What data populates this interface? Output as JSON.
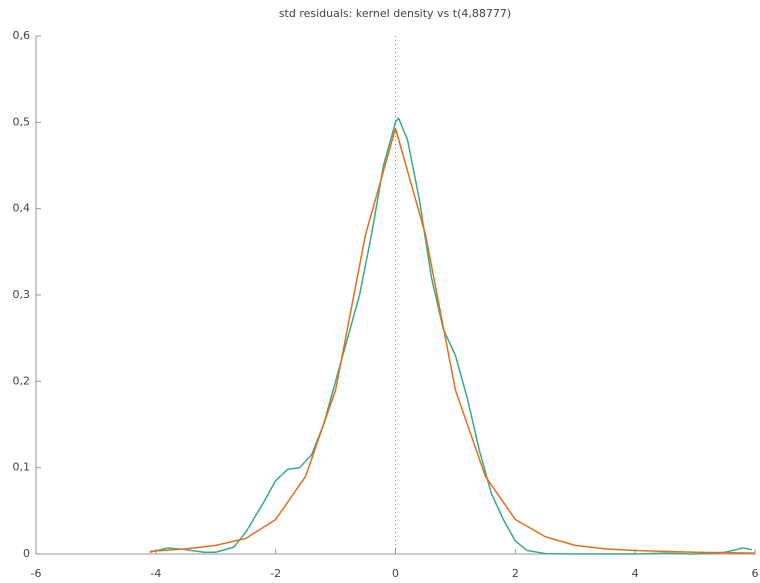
{
  "chart_data": {
    "type": "line",
    "title": "std residuals: kernel density vs t(4,88777)",
    "xlim": [
      -6,
      6
    ],
    "xticks": [
      -6,
      -4,
      -2,
      0,
      2,
      4,
      6
    ],
    "ylim": [
      0,
      0.6
    ],
    "yticks": [
      {
        "value": 0,
        "label": "0"
      },
      {
        "value": 0.1,
        "label": "0,1"
      },
      {
        "value": 0.2,
        "label": "0,2"
      },
      {
        "value": 0.3,
        "label": "0,3"
      },
      {
        "value": 0.4,
        "label": "0,4"
      },
      {
        "value": 0.5,
        "label": "0,5"
      },
      {
        "value": 0.6,
        "label": "0,6"
      }
    ],
    "zero_line": true,
    "series": [
      {
        "color": "#3aa98a",
        "x": [
          -4.1,
          -3.8,
          -3.5,
          -3.2,
          -3.0,
          -2.7,
          -2.5,
          -2.2,
          -2.0,
          -1.8,
          -1.6,
          -1.4,
          -1.2,
          -1.0,
          -0.8,
          -0.6,
          -0.4,
          -0.2,
          0,
          0.05,
          0.2,
          0.4,
          0.6,
          0.8,
          1.0,
          1.2,
          1.4,
          1.6,
          1.8,
          2.0,
          2.2,
          2.5,
          3.0,
          4.0,
          4.5,
          5.0,
          5.5,
          5.8,
          5.95
        ],
        "values": [
          0.002,
          0.007,
          0.005,
          0.002,
          0.002,
          0.008,
          0.025,
          0.06,
          0.085,
          0.098,
          0.1,
          0.115,
          0.15,
          0.2,
          0.25,
          0.3,
          0.37,
          0.45,
          0.5,
          0.505,
          0.48,
          0.41,
          0.32,
          0.26,
          0.23,
          0.18,
          0.12,
          0.07,
          0.04,
          0.015,
          0.004,
          0.0005,
          0,
          0,
          0.001,
          0,
          0.002,
          0.007,
          0.005
        ]
      },
      {
        "color": "#e0701e",
        "x": [
          -4.1,
          -3.5,
          -3.0,
          -2.5,
          -2.0,
          -1.5,
          -1.0,
          -0.5,
          0,
          0.5,
          1.0,
          1.5,
          2.0,
          2.5,
          3.0,
          3.5,
          4.0,
          5.0,
          6.0
        ],
        "values": [
          0.003,
          0.006,
          0.01,
          0.018,
          0.04,
          0.09,
          0.19,
          0.37,
          0.493,
          0.37,
          0.19,
          0.09,
          0.04,
          0.02,
          0.01,
          0.006,
          0.004,
          0.002,
          0.001
        ]
      }
    ]
  }
}
